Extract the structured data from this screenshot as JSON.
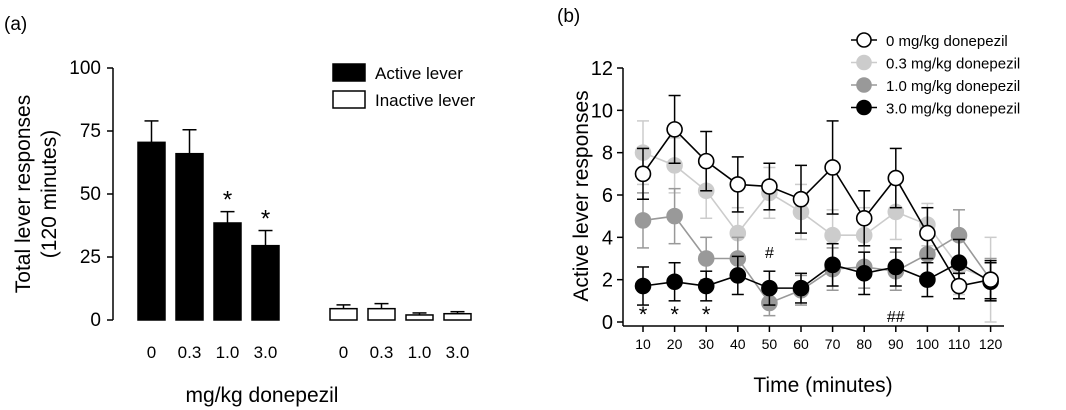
{
  "chart_data": [
    {
      "panel_label": "(a)",
      "type": "bar",
      "ylabel_lines": [
        "Total lever responses",
        "(120 minutes)"
      ],
      "xlabel": "mg/kg donepezil",
      "ylim": [
        0,
        100
      ],
      "yticks": [
        "0",
        "25",
        "50",
        "75",
        "100"
      ],
      "groups": [
        {
          "series": "Active lever",
          "fill": "#000000",
          "categories": [
            "0",
            "0.3",
            "1.0",
            "3.0"
          ],
          "values": [
            70.5,
            66,
            38.5,
            29.5
          ],
          "errors": [
            8.5,
            9.5,
            4.5,
            6
          ],
          "annotations": [
            "",
            "",
            "*",
            "*"
          ]
        },
        {
          "series": "Inactive lever",
          "fill": "#ffffff",
          "categories": [
            "0",
            "0.3",
            "1.0",
            "3.0"
          ],
          "values": [
            4.5,
            4.5,
            2,
            2.5
          ],
          "errors": [
            1.5,
            2,
            0.8,
            0.8
          ],
          "annotations": [
            "",
            "",
            "",
            ""
          ]
        }
      ],
      "legend": [
        {
          "label": "Active lever",
          "fill": "#000000"
        },
        {
          "label": "Inactive lever",
          "fill": "#ffffff"
        }
      ],
      "legend_position": "top-right"
    },
    {
      "panel_label": "(b)",
      "type": "line",
      "ylabel": "Active lever responses",
      "xlabel": "Time (minutes)",
      "ylim": [
        0,
        12
      ],
      "yticks": [
        "0",
        "2",
        "4",
        "6",
        "8",
        "10",
        "12"
      ],
      "x": [
        10,
        20,
        30,
        40,
        50,
        60,
        70,
        80,
        90,
        100,
        110,
        120
      ],
      "xtick_labels": [
        "10",
        "20",
        "30",
        "40",
        "50",
        "60",
        "70",
        "80",
        "90",
        "100",
        "110",
        "120"
      ],
      "series": [
        {
          "name": "0 mg/kg donepezil",
          "fill": "#ffffff",
          "line": "#000000",
          "values": [
            7.0,
            9.1,
            7.6,
            6.5,
            6.4,
            5.8,
            7.3,
            4.9,
            6.8,
            4.2,
            1.7,
            2.0
          ],
          "errors": [
            1.2,
            1.6,
            1.4,
            1.3,
            1.1,
            1.6,
            2.2,
            1.3,
            1.4,
            1.2,
            0.6,
            0.9
          ]
        },
        {
          "name": "0.3 mg/kg donepezil",
          "fill": "#cccccc",
          "line": "#cccccc",
          "values": [
            8.0,
            7.4,
            6.2,
            4.2,
            6.1,
            5.2,
            4.1,
            4.1,
            5.2,
            4.6,
            2.6,
            2.0
          ],
          "errors": [
            1.5,
            1.3,
            1.3,
            1.2,
            1.2,
            1.3,
            1.2,
            1.3,
            1.3,
            1.0,
            1.3,
            2.0
          ]
        },
        {
          "name": "1.0 mg/kg donepezil",
          "fill": "#999999",
          "line": "#999999",
          "values": [
            4.8,
            5.0,
            3.0,
            3.0,
            0.9,
            1.5,
            2.5,
            2.6,
            2.4,
            3.2,
            4.1,
            2.0
          ],
          "errors": [
            1.3,
            1.3,
            1.0,
            1.0,
            0.6,
            0.7,
            1.0,
            1.0,
            0.9,
            1.0,
            1.2,
            1.0
          ]
        },
        {
          "name": "3.0 mg/kg donepezil",
          "fill": "#000000",
          "line": "#000000",
          "values": [
            1.7,
            1.9,
            1.7,
            2.2,
            1.6,
            1.6,
            2.7,
            2.3,
            2.6,
            2.0,
            2.8,
            1.9
          ],
          "errors": [
            0.9,
            0.9,
            0.7,
            0.9,
            0.8,
            0.7,
            1.0,
            1.0,
            0.9,
            0.8,
            1.1,
            0.9
          ]
        }
      ],
      "annotations": [
        {
          "x": 10,
          "text": "*"
        },
        {
          "x": 20,
          "text": "*"
        },
        {
          "x": 30,
          "text": "*"
        },
        {
          "x": 50,
          "text": "#"
        },
        {
          "x": 90,
          "text": "##"
        }
      ],
      "legend_position": "top-right"
    }
  ]
}
